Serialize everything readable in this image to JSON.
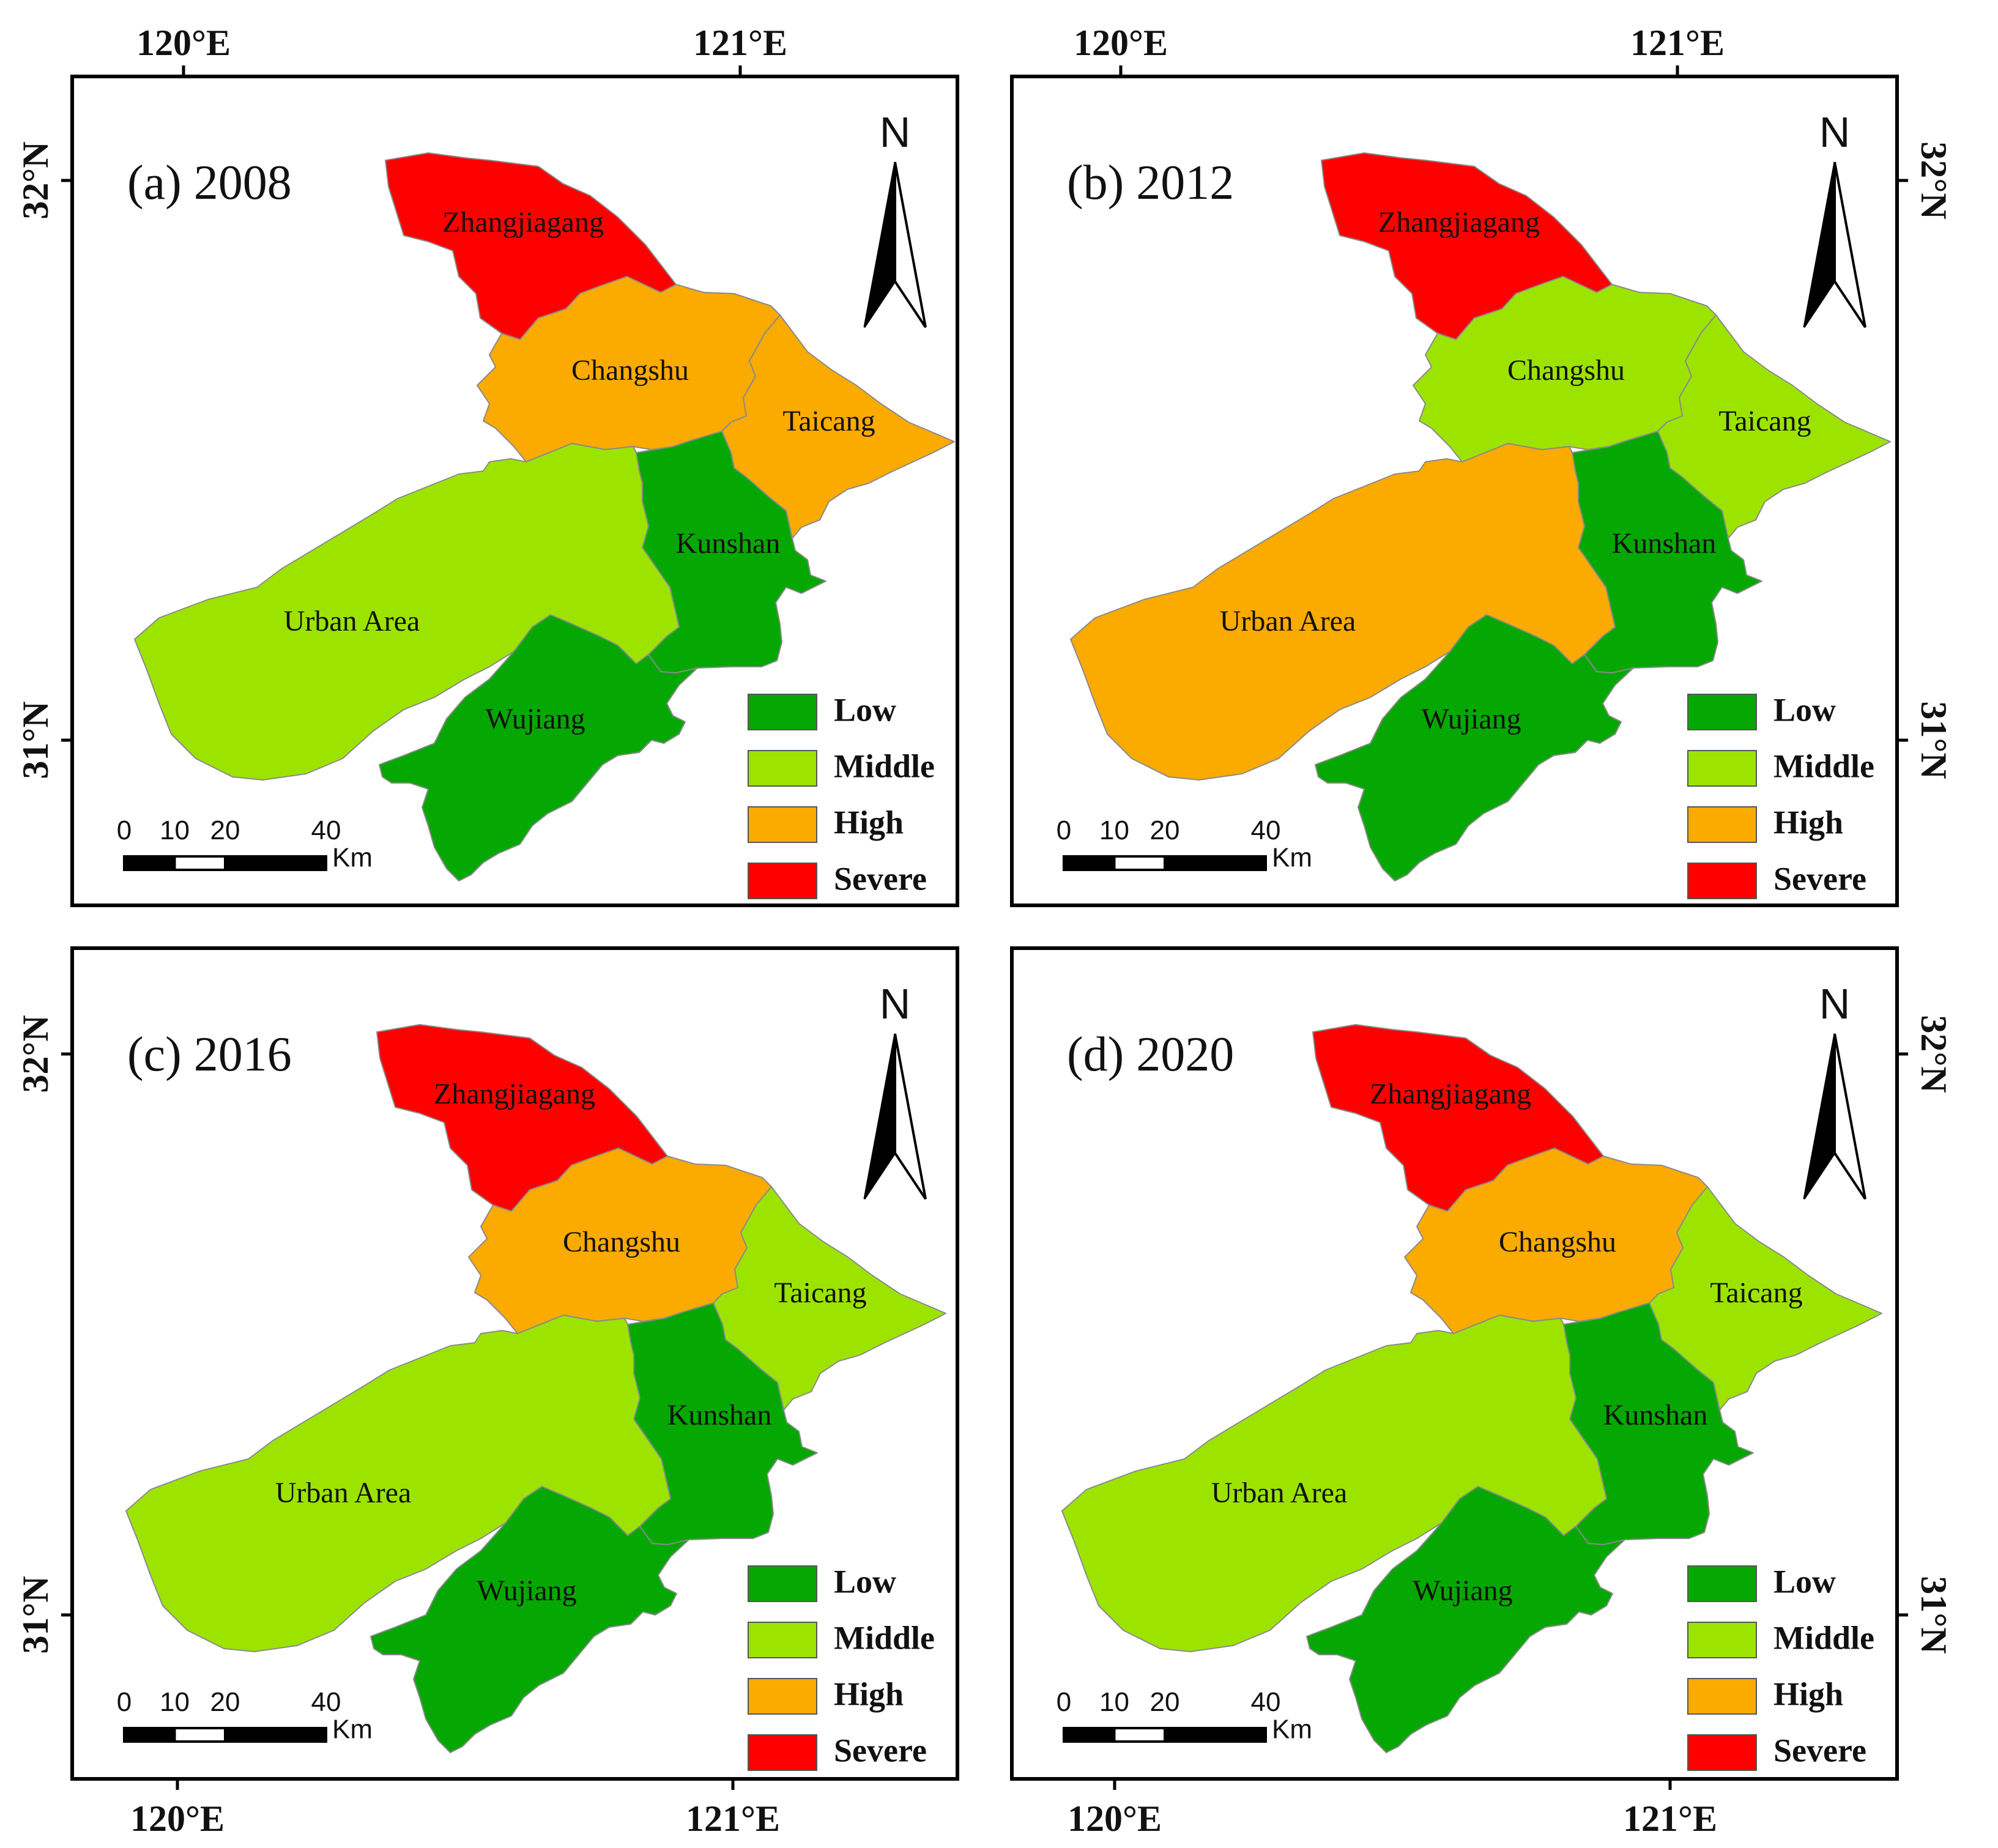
{
  "figure": {
    "colors": {
      "Low": "#05a802",
      "Middle": "#9ce400",
      "High": "#fbaa00",
      "Severe": "#ff0000"
    },
    "legend": [
      {
        "level": "Low",
        "label": "Low"
      },
      {
        "level": "Middle",
        "label": "Middle"
      },
      {
        "level": "High",
        "label": "High"
      },
      {
        "level": "Severe",
        "label": "Severe"
      }
    ],
    "axes": {
      "lon_ticks": [
        "120°E",
        "121°E"
      ],
      "lat_ticks": [
        "32°N",
        "31°N"
      ]
    },
    "north_label": "N",
    "scale_bar": {
      "ticks": [
        "0",
        "10",
        "20",
        "40"
      ],
      "unit": "Km"
    },
    "region_names": {
      "zhangjiagang": "Zhangjiagang",
      "changshu": "Changshu",
      "taicang": "Taicang",
      "kunshan": "Kunshan",
      "urban": "Urban Area",
      "wujiang": "Wujiang"
    },
    "panels": [
      {
        "id": "a",
        "title": "(a) 2008",
        "levels": {
          "zhangjiagang": "Severe",
          "changshu": "High",
          "taicang": "High",
          "kunshan": "Low",
          "urban": "Middle",
          "wujiang": "Low"
        }
      },
      {
        "id": "b",
        "title": "(b) 2012",
        "levels": {
          "zhangjiagang": "Severe",
          "changshu": "Middle",
          "taicang": "Middle",
          "kunshan": "Low",
          "urban": "High",
          "wujiang": "Low"
        }
      },
      {
        "id": "c",
        "title": "(c) 2016",
        "levels": {
          "zhangjiagang": "Severe",
          "changshu": "High",
          "taicang": "Middle",
          "kunshan": "Low",
          "urban": "Middle",
          "wujiang": "Low"
        }
      },
      {
        "id": "d",
        "title": "(d) 2020",
        "levels": {
          "zhangjiagang": "Severe",
          "changshu": "High",
          "taicang": "Middle",
          "kunshan": "Low",
          "urban": "Middle",
          "wujiang": "Low"
        }
      }
    ]
  }
}
